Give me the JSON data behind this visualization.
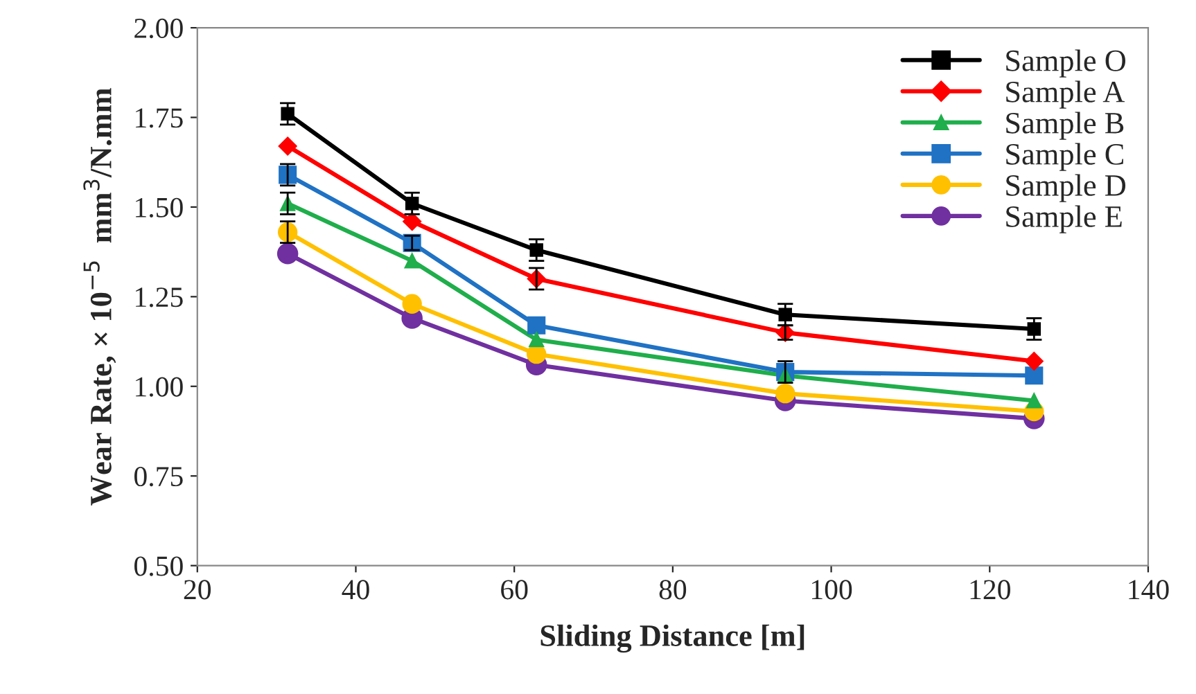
{
  "chart_data": {
    "type": "line",
    "xlabel": "Sliding Distance [m]",
    "ylabel": "Wear Rate, × 10$^{−5}$  mm$^{3}$/N.mm",
    "x": [
      31.4,
      47.1,
      62.8,
      94.2,
      125.6
    ],
    "xlim": [
      20,
      140
    ],
    "xticks": [
      20,
      40,
      60,
      80,
      100,
      120,
      140
    ],
    "ylim": [
      0.5,
      2.0
    ],
    "yticks": [
      {
        "value": 0.5,
        "label": "0.50"
      },
      {
        "value": 0.75,
        "label": "0.75"
      },
      {
        "value": 1.0,
        "label": "1.00"
      },
      {
        "value": 1.25,
        "label": "1.25"
      },
      {
        "value": 1.5,
        "label": "1.50"
      },
      {
        "value": 1.75,
        "label": "1.75"
      },
      {
        "value": 2.0,
        "label": "2.00"
      }
    ],
    "grid": false,
    "legend": "top right",
    "line_style": "solid",
    "series": [
      {
        "name": "Sample O",
        "color": "#000000",
        "marker": "square",
        "values": [
          1.76,
          1.51,
          1.38,
          1.2,
          1.16
        ],
        "errors": [
          0.03,
          0.03,
          0.03,
          0.03,
          0.03
        ]
      },
      {
        "name": "Sample A",
        "color": "#ff0000",
        "marker": "diamond",
        "values": [
          1.67,
          1.46,
          1.3,
          1.15,
          1.07
        ],
        "errors": [
          null,
          null,
          0.03,
          0.02,
          null
        ]
      },
      {
        "name": "Sample B",
        "color": "#1fae4b",
        "marker": "triangle",
        "values": [
          1.51,
          1.35,
          1.13,
          1.03,
          0.96
        ],
        "errors": [
          0.03,
          null,
          null,
          null,
          null
        ]
      },
      {
        "name": "Sample C",
        "color": "#1f72c4",
        "marker": "square",
        "values": [
          1.59,
          1.4,
          1.17,
          1.04,
          1.03
        ],
        "errors": [
          0.03,
          0.02,
          null,
          0.03,
          null
        ]
      },
      {
        "name": "Sample D",
        "color": "#ffc000",
        "marker": "circle",
        "values": [
          1.43,
          1.23,
          1.09,
          0.98,
          0.93
        ],
        "errors": [
          0.03,
          null,
          null,
          null,
          null
        ]
      },
      {
        "name": "Sample E",
        "color": "#7030a0",
        "marker": "circle",
        "values": [
          1.37,
          1.19,
          1.06,
          0.96,
          0.91
        ]
      }
    ]
  }
}
